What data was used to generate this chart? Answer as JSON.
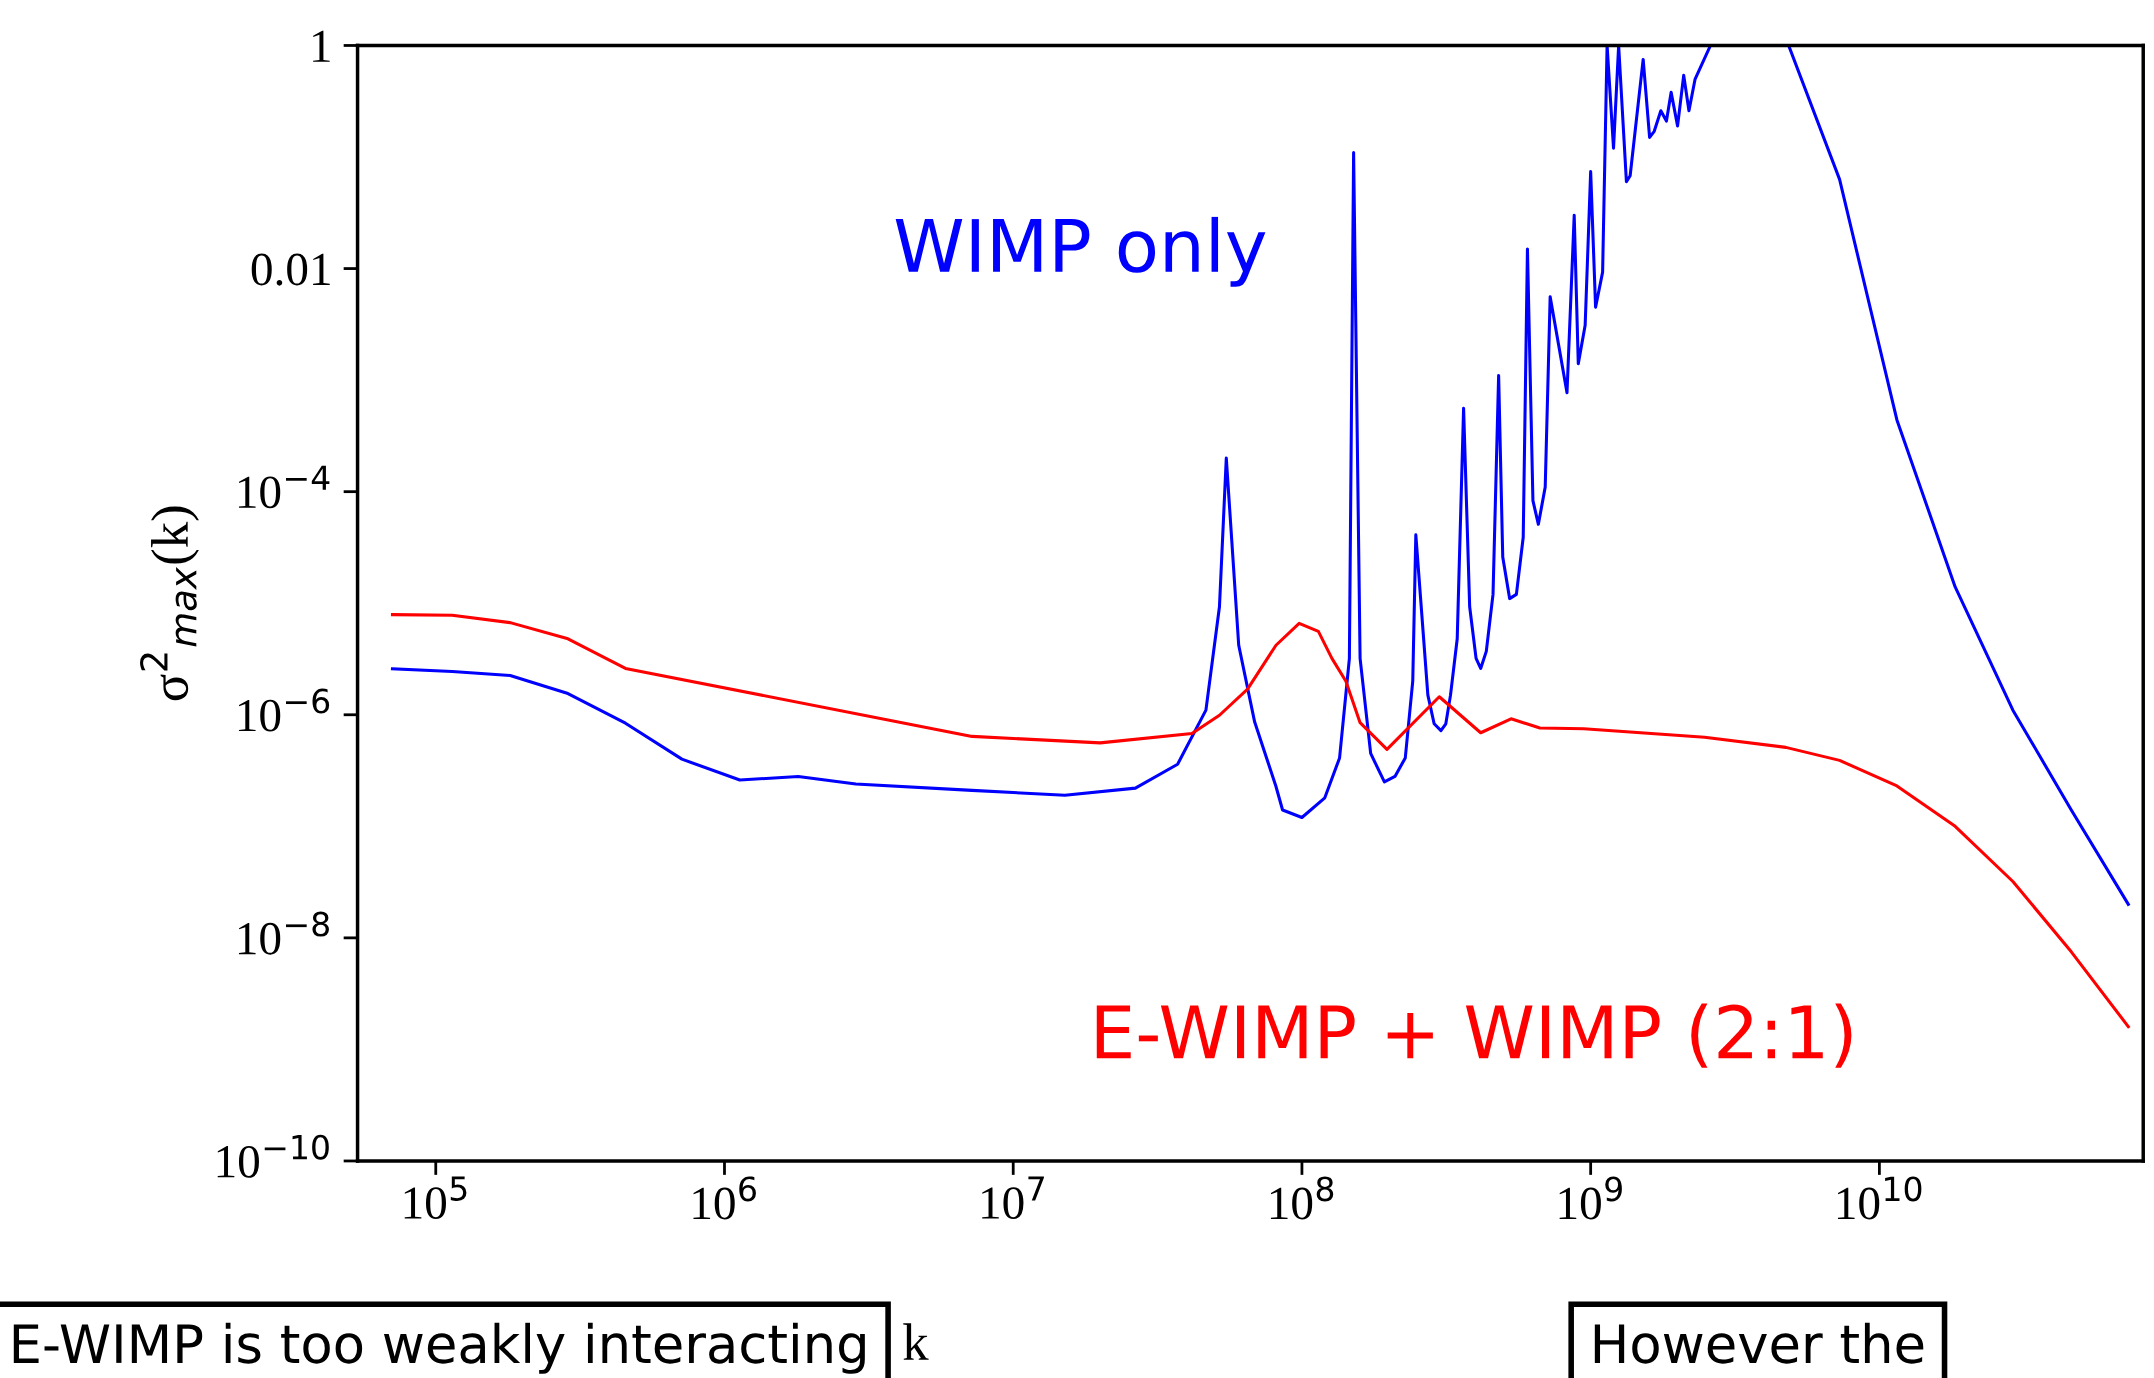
{
  "chart_data": {
    "type": "line",
    "xlabel": "k",
    "ylabel": "σ$^{2}$$_{max}$(k)",
    "log": "xy",
    "xlim": [
      53600.0,
      82000000000.0
    ],
    "ylim": [
      1e-10,
      1
    ],
    "xticks": [
      {
        "value": 100000.0,
        "label": "10$^{5}$"
      },
      {
        "value": 1000000.0,
        "label": "10$^{6}$"
      },
      {
        "value": 10000000.0,
        "label": "10$^{7}$"
      },
      {
        "value": 100000000.0,
        "label": "10$^{8}$"
      },
      {
        "value": 1000000000.0,
        "label": "10$^{9}$"
      },
      {
        "value": 10000000000.0,
        "label": "10$^{10}$"
      }
    ],
    "yticks": [
      {
        "value": 1e-10,
        "label": "10$^{−10}$"
      },
      {
        "value": 1e-08,
        "label": "10$^{−8}$"
      },
      {
        "value": 1e-06,
        "label": "10$^{−6}$"
      },
      {
        "value": 0.0001,
        "label": "10$^{−4}$"
      },
      {
        "value": 0.01,
        "label": "0.01"
      },
      {
        "value": 1,
        "label": "1"
      }
    ],
    "line_style": "solid",
    "marker": "none",
    "series": [
      {
        "name": "WIMP only",
        "color": "#0000ff",
        "x": [
          70800.0,
          114000.0,
          181000.0,
          287000.0,
          454000.0,
          712000.0,
          1130000.0,
          1800000.0,
          2850000.0,
          7200000.0,
          15100000.0,
          26500000.0,
          37100000.0,
          46500000.0,
          51800000.0,
          54700000.0,
          60400000.0,
          68600000.0,
          81200000.0,
          85700000.0,
          100000000.0,
          120000000.0,
          135000000.0,
          146000000.0,
          151000000.0,
          159000000.0,
          173000000.0,
          193000000.0,
          210000000.0,
          228000000.0,
          242000000.0,
          248000000.0,
          273000000.0,
          287000000.0,
          303000000.0,
          315000000.0,
          327000000.0,
          345000000.0,
          363000000.0,
          381000000.0,
          401000000.0,
          416000000.0,
          435000000.0,
          459000000.0,
          480000000.0,
          496000000.0,
          524000000.0,
          553000000.0,
          584000000.0,
          604000000.0,
          631000000.0,
          659000000.0,
          696000000.0,
          724000000.0,
          828000000.0,
          877000000.0,
          906000000.0,
          957000000.0,
          1000000000.0,
          1040000000.0,
          1100000000.0,
          1140000000.0,
          1200000000.0,
          1250000000.0,
          1330000000.0,
          1370000000.0,
          1520000000.0,
          1600000000.0,
          1660000000.0,
          1750000000.0,
          1830000000.0,
          1900000000.0,
          2000000000.0,
          2100000000.0,
          2190000000.0,
          2300000000.0,
          2600000000.0,
          3500000000.0,
          4850000000.0,
          7280000000.0,
          11500000000.0,
          18300000000.0,
          29000000000.0,
          46200000000.0,
          72800000000.0
        ],
        "values": [
          2.58e-06,
          2.44e-06,
          2.25e-06,
          1.55e-06,
          8.4e-07,
          4e-07,
          2.6e-07,
          2.8e-07,
          2.4e-07,
          2.1e-07,
          1.9e-07,
          2.2e-07,
          3.6e-07,
          1.1e-06,
          9.3e-06,
          0.0002,
          4.2e-06,
          8.6e-07,
          2.3e-07,
          1.4e-07,
          1.2e-07,
          1.8e-07,
          4.1e-07,
          3.2e-06,
          0.11,
          3.2e-06,
          4.5e-07,
          2.5e-07,
          2.8e-07,
          4.1e-07,
          2e-06,
          4.1e-05,
          1.5e-06,
          8.3e-07,
          7.2e-07,
          8.3e-07,
          1.5e-06,
          4.8e-06,
          0.00056,
          9.3e-06,
          3.2e-06,
          2.6e-06,
          3.7e-06,
          1.2e-05,
          0.0011,
          2.6e-05,
          1.1e-05,
          1.2e-05,
          3.9e-05,
          0.015,
          8.3e-05,
          5.1e-05,
          0.00011,
          0.0056,
          0.00077,
          0.03,
          0.0014,
          0.0031,
          0.074,
          0.0045,
          0.0093,
          1,
          0.12,
          1,
          0.06,
          0.068,
          0.75,
          0.15,
          0.17,
          0.26,
          0.21,
          0.38,
          0.19,
          0.54,
          0.26,
          0.5,
          1,
          null,
          1,
          0.063,
          0.00044,
          1.4e-05,
          1.1e-06,
          1.4e-07,
          2e-08
        ]
      },
      {
        "name": "E-WIMP + WIMP (2:1)",
        "color": "#ff0000",
        "x": [
          70800.0,
          114000.0,
          181000.0,
          287000.0,
          454000.0,
          7200000.0,
          20000000.0,
          41600000.0,
          51800000.0,
          64800000.0,
          81300000.0,
          97800000.0,
          114000000.0,
          127000000.0,
          142000000.0,
          159000000.0,
          197000000.0,
          299000000.0,
          416000000.0,
          530000000.0,
          667000000.0,
          946000000.0,
          2480000000.0,
          4740000000.0,
          7280000000.0,
          11500000000.0,
          18300000000.0,
          29000000000.0,
          46200000000.0,
          72800000000.0
        ],
        "values": [
          7.9e-06,
          7.8e-06,
          6.7e-06,
          4.8e-06,
          2.6e-06,
          6.4e-07,
          5.6e-07,
          6.8e-07,
          9.9e-07,
          1.7e-06,
          4.2e-06,
          6.6e-06,
          5.6e-06,
          3.2e-06,
          2e-06,
          8.5e-07,
          4.9e-07,
          1.45e-06,
          6.9e-07,
          9.2e-07,
          7.6e-07,
          7.5e-07,
          6.3e-07,
          5.1e-07,
          3.9e-07,
          2.3e-07,
          1e-07,
          3.2e-08,
          7.5e-09,
          1.6e-09
        ]
      }
    ],
    "annotations": [
      "E-WIMP is too weakly interacting",
      "However the"
    ]
  }
}
